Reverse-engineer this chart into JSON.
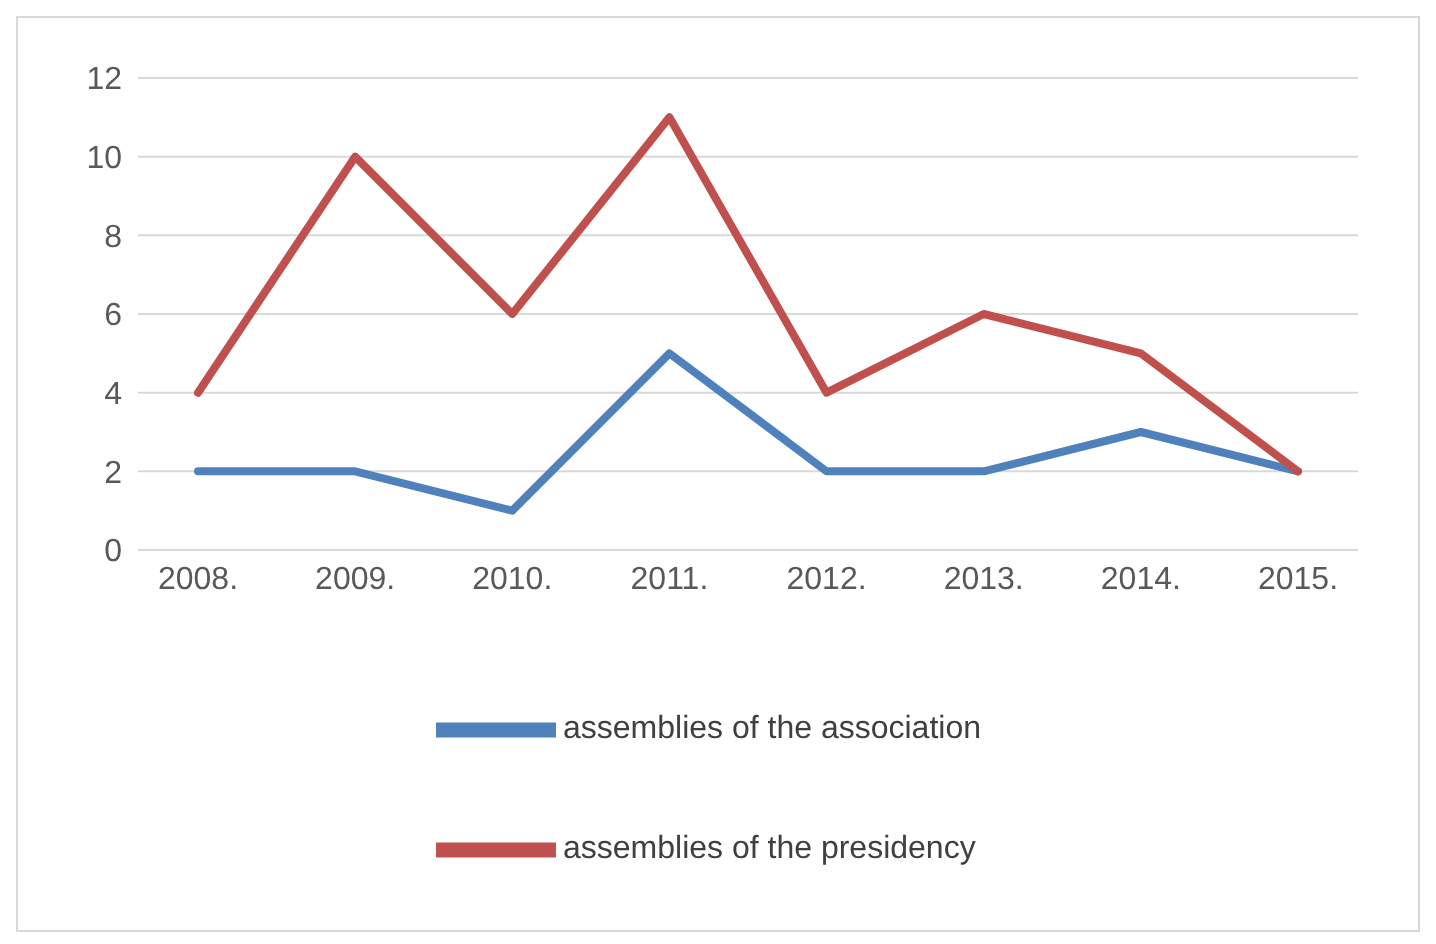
{
  "chart_data": {
    "type": "line",
    "categories": [
      "2008.",
      "2009.",
      "2010.",
      "2011.",
      "2012.",
      "2013.",
      "2014.",
      "2015."
    ],
    "series": [
      {
        "name": "assemblies of the association",
        "color": "#4f81bd",
        "values": [
          2,
          2,
          1,
          5,
          2,
          2,
          3,
          2
        ]
      },
      {
        "name": "assemblies of the presidency",
        "color": "#c0504d",
        "values": [
          4,
          10,
          6,
          11,
          4,
          6,
          5,
          2
        ]
      }
    ],
    "ylim": [
      0,
      12
    ],
    "yticks": [
      0,
      2,
      4,
      6,
      8,
      10,
      12
    ],
    "grid": "y",
    "legend": "bottom",
    "marker": "none",
    "line_style": "solid"
  }
}
